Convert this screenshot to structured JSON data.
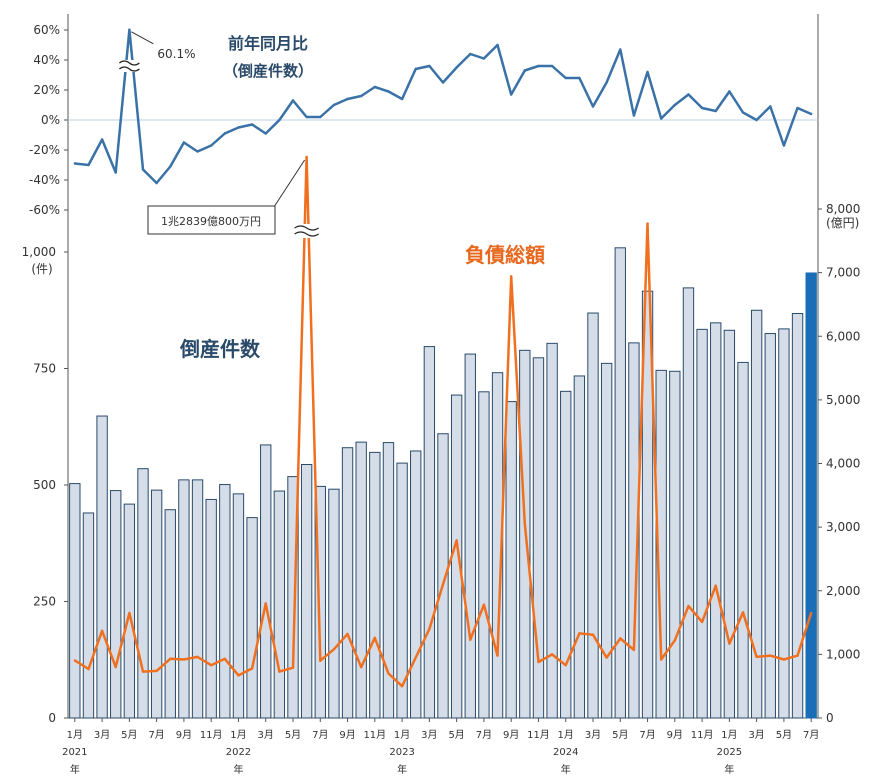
{
  "chart_data": [
    {
      "type": "line",
      "title": "前年同月比",
      "subtitle": "（倒産件数）",
      "y_ticks": [
        "60%",
        "40%",
        "20%",
        "0%",
        "-20%",
        "-40%",
        "-60%"
      ],
      "ylim": [
        -60,
        60
      ],
      "peak_label": "60.1%",
      "series": [
        {
          "color": "#3a72a8",
          "values": [
            -29,
            -30,
            -13,
            -35,
            60.1,
            -33,
            -42,
            -31,
            -15,
            -21,
            -17,
            -9,
            -5,
            -3,
            -9,
            0,
            13,
            2,
            2,
            10,
            14,
            16,
            22,
            19,
            14,
            34,
            36,
            25,
            35,
            44,
            41,
            50,
            17,
            33,
            36,
            36,
            28,
            28,
            9,
            25,
            47,
            3,
            32,
            1,
            10,
            17,
            8,
            6,
            19,
            5,
            0,
            9,
            -17,
            8,
            4
          ]
        }
      ]
    },
    {
      "type": "bar",
      "title": "倒産件数",
      "ylabel": "(件)",
      "y_ticks": [
        "1,000",
        "750",
        "500",
        "250",
        "0"
      ],
      "ylim": [
        0,
        1000
      ],
      "x_month_labels": [
        "1月",
        "3月",
        "5月",
        "7月",
        "9月",
        "11月",
        "1月",
        "3月",
        "5月",
        "7月",
        "9月",
        "11月",
        "1月",
        "3月",
        "5月",
        "7月",
        "9月",
        "11月",
        "1月",
        "3月",
        "5月",
        "7月",
        "9月",
        "11月",
        "1月",
        "3月",
        "5月",
        "7月"
      ],
      "x_year_labels": [
        {
          "year": "2021",
          "suffix": "年"
        },
        {
          "year": "2022",
          "suffix": "年"
        },
        {
          "year": "2023",
          "suffix": "年"
        },
        {
          "year": "2024",
          "suffix": "年"
        },
        {
          "year": "2025",
          "suffix": "年"
        }
      ],
      "bar_fill": "#d5dee8",
      "bar_stroke": "#2a4a6a",
      "highlight_fill": "#1a6eb8",
      "values": [
        503,
        440,
        648,
        488,
        459,
        535,
        489,
        447,
        511,
        511,
        469,
        501,
        481,
        430,
        586,
        487,
        518,
        544,
        497,
        491,
        580,
        592,
        570,
        591,
        547,
        573,
        797,
        610,
        693,
        781,
        700,
        741,
        679,
        789,
        773,
        804,
        701,
        734,
        869,
        761,
        1009,
        805,
        916,
        746,
        744,
        923,
        834,
        848,
        832,
        763,
        875,
        825,
        835,
        868,
        955
      ]
    },
    {
      "type": "line",
      "title": "負債総額",
      "ylabel": "(億円)",
      "y_ticks": [
        "8,000",
        "7,000",
        "6,000",
        "5,000",
        "4,000",
        "3,000",
        "2,000",
        "1,000",
        "0"
      ],
      "ylim": [
        0,
        8000
      ],
      "peak_annotation": "1兆2839億800万円",
      "series": [
        {
          "color": "#f07020",
          "values": [
            905,
            770,
            1370,
            800,
            1650,
            730,
            740,
            930,
            920,
            960,
            830,
            930,
            670,
            780,
            1800,
            730,
            790,
            12839,
            900,
            1080,
            1320,
            800,
            1260,
            700,
            500,
            950,
            1400,
            2100,
            2790,
            1230,
            1780,
            980,
            6940,
            3050,
            880,
            1000,
            830,
            1330,
            1310,
            950,
            1250,
            1070,
            7770,
            920,
            1220,
            1760,
            1510,
            2080,
            1170,
            1660,
            960,
            980,
            920,
            980,
            1650
          ]
        }
      ]
    }
  ]
}
